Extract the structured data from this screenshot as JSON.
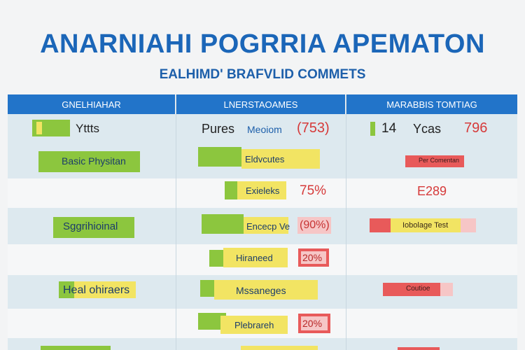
{
  "header": {
    "title": "ANARNIAHI POGRRIA APEMATON",
    "subtitle": "EALHIMD' BRAFVLID COMMETS"
  },
  "table": {
    "columns": [
      "GNELHIAHAR",
      "LNERSTAOAMES",
      "MARABBIS TOMTIAG"
    ]
  },
  "row1": {
    "col1_text": "Yttts",
    "col2_a": "Pures",
    "col2_b": "Meoiom",
    "col2_value": "(753)",
    "col3_a": "14",
    "col3_b": "Ycas",
    "col3_value": "796"
  },
  "rows": {
    "r2": {
      "col1": "Basic Physitan",
      "col2": "Eldvcutes",
      "col3": "Per Comentan"
    },
    "r3": {
      "col2": "Exieleks",
      "col2_value": "75%",
      "col3": "E289"
    },
    "r4": {
      "col1": "Sggrihioinal",
      "col2": "Encecp Ve",
      "col2_value": "(90%)",
      "col3": "Iobolage Test"
    },
    "r5": {
      "col2": "Hiraneed",
      "col2_value": "20%"
    },
    "r6": {
      "col1": "Heal ohiraers",
      "col2": "Mssaneges",
      "col3": "Coutioe"
    },
    "r7": {
      "col2": "Plebrareh",
      "col2_value": "20%"
    }
  }
}
